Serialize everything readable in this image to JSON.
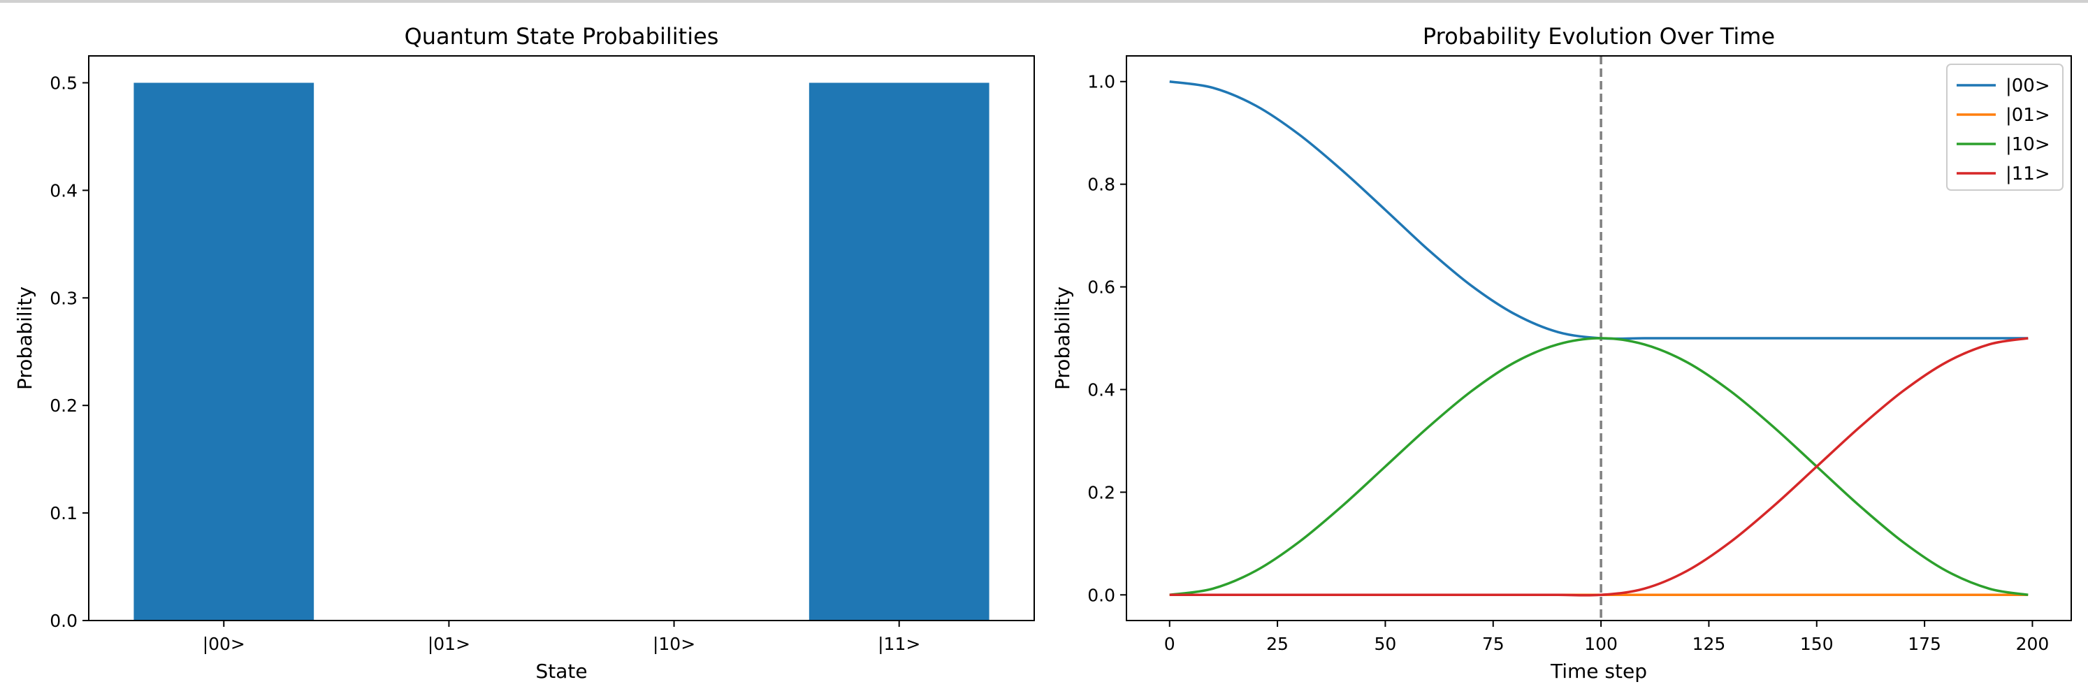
{
  "chart_data": [
    {
      "type": "bar",
      "title": "Quantum State Probabilities",
      "xlabel": "State",
      "ylabel": "Probability",
      "categories": [
        "|00>",
        "|01>",
        "|10>",
        "|11>"
      ],
      "values": [
        0.5,
        0.0,
        0.0,
        0.5
      ],
      "ylim": [
        0,
        0.525
      ],
      "yticks": [
        0.0,
        0.1,
        0.2,
        0.3,
        0.4,
        0.5
      ],
      "color": "#1f77b4",
      "grid": false
    },
    {
      "type": "line",
      "title": "Probability Evolution Over Time",
      "xlabel": "Time step",
      "ylabel": "Probability",
      "xlim": [
        -10,
        209
      ],
      "ylim": [
        -0.05,
        1.05
      ],
      "xticks": [
        0,
        25,
        50,
        75,
        100,
        125,
        150,
        175,
        200
      ],
      "yticks": [
        0.0,
        0.2,
        0.4,
        0.6,
        0.8,
        1.0
      ],
      "grid": false,
      "legend": "top-right",
      "vline": {
        "x": 100,
        "style": "dashed",
        "color": "#7f7f7f"
      },
      "x": [
        0,
        10,
        20,
        30,
        40,
        50,
        60,
        70,
        80,
        90,
        100,
        110,
        120,
        130,
        140,
        150,
        160,
        170,
        180,
        190,
        199
      ],
      "series": [
        {
          "name": "|00>",
          "color": "#1f77b4",
          "values": [
            1.0,
            0.988,
            0.953,
            0.897,
            0.827,
            0.75,
            0.672,
            0.602,
            0.547,
            0.512,
            0.5,
            0.5,
            0.5,
            0.5,
            0.5,
            0.5,
            0.5,
            0.5,
            0.5,
            0.5,
            0.5
          ]
        },
        {
          "name": "|01>",
          "color": "#ff7f0e",
          "values": [
            0.0,
            0.0,
            0.0,
            0.0,
            0.0,
            0.0,
            0.0,
            0.0,
            0.0,
            0.0,
            0.0,
            0.0,
            0.0,
            0.0,
            0.0,
            0.0,
            0.0,
            0.0,
            0.0,
            0.0,
            0.0
          ]
        },
        {
          "name": "|10>",
          "color": "#2ca02c",
          "values": [
            0.0,
            0.012,
            0.047,
            0.103,
            0.173,
            0.25,
            0.327,
            0.397,
            0.453,
            0.488,
            0.5,
            0.488,
            0.453,
            0.397,
            0.327,
            0.25,
            0.173,
            0.103,
            0.047,
            0.012,
            0.0
          ]
        },
        {
          "name": "|11>",
          "color": "#d62728",
          "values": [
            0.0,
            0.0,
            0.0,
            0.0,
            0.0,
            0.0,
            0.0,
            0.0,
            0.0,
            0.0,
            0.0,
            0.012,
            0.047,
            0.103,
            0.173,
            0.25,
            0.327,
            0.397,
            0.453,
            0.488,
            0.5
          ]
        }
      ]
    }
  ]
}
